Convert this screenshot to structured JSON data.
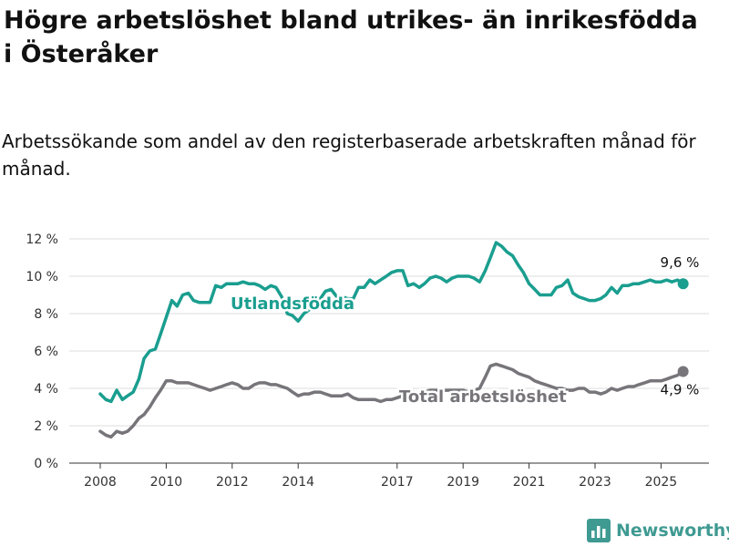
{
  "header": {
    "title": "Högre arbetslöshet bland utrikes- än inrikesfödda i Österåker",
    "subtitle": "Arbetssökande som andel av den registerbaserade arbetskraften månad för månad."
  },
  "logo": {
    "text": "Newsworthy",
    "icon": "bar-chart-logo-icon",
    "color": "#3f9a92"
  },
  "chart_data": {
    "type": "line",
    "x_ticks": [
      "2008",
      "2010",
      "2012",
      "2014",
      "2017",
      "2019",
      "2021",
      "2023",
      "2025"
    ],
    "y_ticks": [
      "0 %",
      "2 %",
      "4 %",
      "6 %",
      "8 %",
      "10 %",
      "12 %"
    ],
    "ylim": [
      0,
      12
    ],
    "xlim": [
      2007.5,
      2027.0
    ],
    "grid": true,
    "series": [
      {
        "name": "Utlandsfödda",
        "color": "#1a9e8f",
        "end_label": "9,6 %",
        "x": [
          2008.0,
          2008.17,
          2008.33,
          2008.5,
          2008.67,
          2008.83,
          2009.0,
          2009.17,
          2009.33,
          2009.5,
          2009.67,
          2009.83,
          2010.0,
          2010.17,
          2010.33,
          2010.5,
          2010.67,
          2010.83,
          2011.0,
          2011.17,
          2011.33,
          2011.5,
          2011.67,
          2011.83,
          2012.0,
          2012.17,
          2012.33,
          2012.5,
          2012.67,
          2012.83,
          2013.0,
          2013.17,
          2013.33,
          2013.5,
          2013.67,
          2013.83,
          2014.0,
          2014.17,
          2014.33,
          2014.5,
          2014.67,
          2014.83,
          2015.0,
          2015.17,
          2015.33,
          2015.5,
          2015.67,
          2015.83,
          2016.0,
          2016.17,
          2016.33,
          2016.5,
          2016.67,
          2016.83,
          2017.0,
          2017.17,
          2017.33,
          2017.5,
          2017.67,
          2017.83,
          2018.0,
          2018.17,
          2018.33,
          2018.5,
          2018.67,
          2018.83,
          2019.0,
          2019.17,
          2019.33,
          2019.5,
          2019.67,
          2019.83,
          2020.0,
          2020.17,
          2020.33,
          2020.5,
          2020.67,
          2020.83,
          2021.0,
          2021.17,
          2021.33,
          2021.5,
          2021.67,
          2021.83,
          2022.0,
          2022.17,
          2022.33,
          2022.5,
          2022.67,
          2022.83,
          2023.0,
          2023.17,
          2023.33,
          2023.5,
          2023.67,
          2023.83,
          2024.0,
          2024.17,
          2024.33,
          2024.5,
          2024.67,
          2024.83,
          2025.0,
          2025.17,
          2025.33,
          2025.5,
          2025.67
        ],
        "y": [
          3.7,
          3.4,
          3.3,
          3.9,
          3.4,
          3.6,
          3.8,
          4.5,
          5.6,
          6.0,
          6.1,
          6.9,
          7.8,
          8.7,
          8.4,
          9.0,
          9.1,
          8.7,
          8.6,
          8.6,
          8.6,
          9.5,
          9.4,
          9.6,
          9.6,
          9.6,
          9.7,
          9.6,
          9.6,
          9.5,
          9.3,
          9.5,
          9.4,
          8.9,
          8.0,
          7.9,
          7.6,
          8.0,
          8.2,
          8.5,
          8.8,
          9.2,
          9.3,
          8.9,
          8.9,
          8.8,
          8.8,
          9.4,
          9.4,
          9.8,
          9.6,
          9.8,
          10.0,
          10.2,
          10.3,
          10.3,
          9.5,
          9.6,
          9.4,
          9.6,
          9.9,
          10.0,
          9.9,
          9.7,
          9.9,
          10.0,
          10.0,
          10.0,
          9.9,
          9.7,
          10.3,
          11.0,
          11.8,
          11.6,
          11.3,
          11.1,
          10.6,
          10.2,
          9.6,
          9.3,
          9.0,
          9.0,
          9.0,
          9.4,
          9.5,
          9.8,
          9.1,
          8.9,
          8.8,
          8.7,
          8.7,
          8.8,
          9.0,
          9.4,
          9.1,
          9.5,
          9.5,
          9.6,
          9.6,
          9.7,
          9.8,
          9.7,
          9.7,
          9.8,
          9.7,
          9.8,
          9.6
        ]
      },
      {
        "name": "Total arbetslöshet",
        "color": "#77757a",
        "end_label": "4,9 %",
        "x": [
          2008.0,
          2008.17,
          2008.33,
          2008.5,
          2008.67,
          2008.83,
          2009.0,
          2009.17,
          2009.33,
          2009.5,
          2009.67,
          2009.83,
          2010.0,
          2010.17,
          2010.33,
          2010.5,
          2010.67,
          2010.83,
          2011.0,
          2011.17,
          2011.33,
          2011.5,
          2011.67,
          2011.83,
          2012.0,
          2012.17,
          2012.33,
          2012.5,
          2012.67,
          2012.83,
          2013.0,
          2013.17,
          2013.33,
          2013.5,
          2013.67,
          2013.83,
          2014.0,
          2014.17,
          2014.33,
          2014.5,
          2014.67,
          2014.83,
          2015.0,
          2015.17,
          2015.33,
          2015.5,
          2015.67,
          2015.83,
          2016.0,
          2016.17,
          2016.33,
          2016.5,
          2016.67,
          2016.83,
          2017.0,
          2017.17,
          2017.33,
          2017.5,
          2017.67,
          2017.83,
          2018.0,
          2018.17,
          2018.33,
          2018.5,
          2018.67,
          2018.83,
          2019.0,
          2019.17,
          2019.33,
          2019.5,
          2019.67,
          2019.83,
          2020.0,
          2020.17,
          2020.33,
          2020.5,
          2020.67,
          2020.83,
          2021.0,
          2021.17,
          2021.33,
          2021.5,
          2021.67,
          2021.83,
          2022.0,
          2022.17,
          2022.33,
          2022.5,
          2022.67,
          2022.83,
          2023.0,
          2023.17,
          2023.33,
          2023.5,
          2023.67,
          2023.83,
          2024.0,
          2024.17,
          2024.33,
          2024.5,
          2024.67,
          2024.83,
          2025.0,
          2025.17,
          2025.33,
          2025.5,
          2025.67
        ],
        "y": [
          1.7,
          1.5,
          1.4,
          1.7,
          1.6,
          1.7,
          2.0,
          2.4,
          2.6,
          3.0,
          3.5,
          3.9,
          4.4,
          4.4,
          4.3,
          4.3,
          4.3,
          4.2,
          4.1,
          4.0,
          3.9,
          4.0,
          4.1,
          4.2,
          4.3,
          4.2,
          4.0,
          4.0,
          4.2,
          4.3,
          4.3,
          4.2,
          4.2,
          4.1,
          4.0,
          3.8,
          3.6,
          3.7,
          3.7,
          3.8,
          3.8,
          3.7,
          3.6,
          3.6,
          3.6,
          3.7,
          3.5,
          3.4,
          3.4,
          3.4,
          3.4,
          3.3,
          3.4,
          3.4,
          3.5,
          3.6,
          3.7,
          3.8,
          3.7,
          3.8,
          3.9,
          3.9,
          3.9,
          3.9,
          3.9,
          3.9,
          3.9,
          3.8,
          3.9,
          4.0,
          4.6,
          5.2,
          5.3,
          5.2,
          5.1,
          5.0,
          4.8,
          4.7,
          4.6,
          4.4,
          4.3,
          4.2,
          4.1,
          4.0,
          4.0,
          3.9,
          3.9,
          4.0,
          4.0,
          3.8,
          3.8,
          3.7,
          3.8,
          4.0,
          3.9,
          4.0,
          4.1,
          4.1,
          4.2,
          4.3,
          4.4,
          4.4,
          4.4,
          4.5,
          4.6,
          4.7,
          4.9
        ]
      }
    ]
  }
}
